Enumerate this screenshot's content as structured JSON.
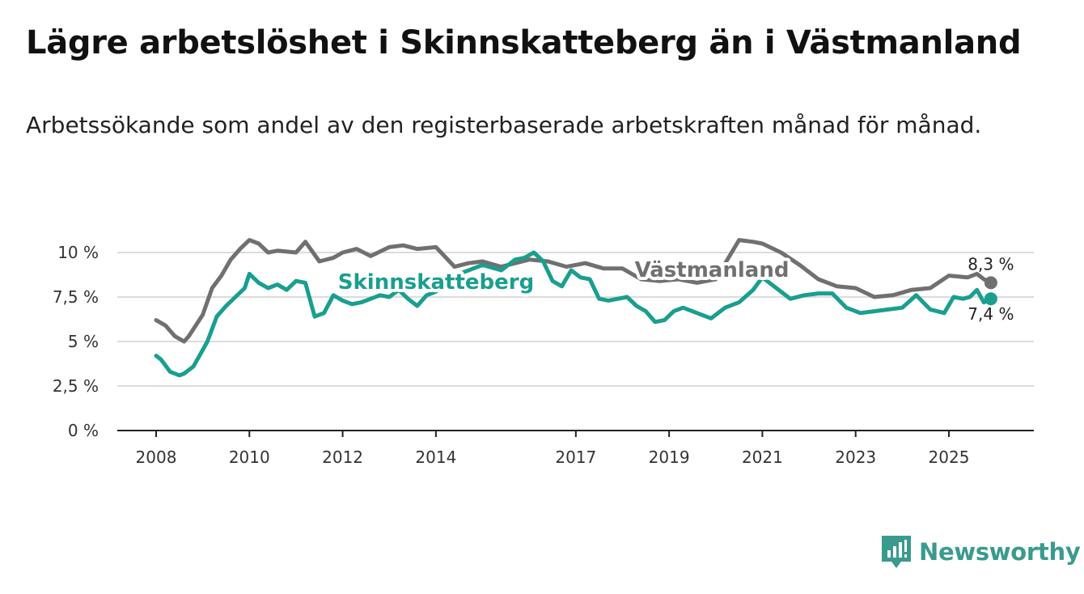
{
  "title": "Lägre arbetslöshet i Skinnskatteberg än i Västmanland",
  "subtitle": "Arbetssökande som andel av den registerbaserade arbetskraften månad för månad.",
  "brand": {
    "name": "Newsworthy",
    "color": "#3a9a8e"
  },
  "chart_data": {
    "type": "line",
    "x_range": [
      2007.5,
      2026.9
    ],
    "ylim": [
      0,
      10.5
    ],
    "y_ticks": [
      {
        "value": 0,
        "label": "0 %"
      },
      {
        "value": 2.5,
        "label": "2,5 %"
      },
      {
        "value": 5,
        "label": "5 %"
      },
      {
        "value": 7.5,
        "label": "7,5 %"
      },
      {
        "value": 10,
        "label": "10 %"
      }
    ],
    "x_ticks": [
      {
        "value": 2008,
        "label": "2008"
      },
      {
        "value": 2010,
        "label": "2010"
      },
      {
        "value": 2012,
        "label": "2012"
      },
      {
        "value": 2014,
        "label": "2014"
      },
      {
        "value": 2017,
        "label": "2017"
      },
      {
        "value": 2019,
        "label": "2019"
      },
      {
        "value": 2021,
        "label": "2021"
      },
      {
        "value": 2023,
        "label": "2023"
      },
      {
        "value": 2025,
        "label": "2025"
      }
    ],
    "grid": true,
    "series": [
      {
        "name": "Västmanland",
        "color": "#707070",
        "end_label": "8,3 %",
        "x": [
          2008.0,
          2008.2,
          2008.4,
          2008.6,
          2008.7,
          2009.0,
          2009.2,
          2009.4,
          2009.6,
          2009.8,
          2010.0,
          2010.2,
          2010.4,
          2010.6,
          2011.0,
          2011.2,
          2011.5,
          2011.8,
          2012.0,
          2012.3,
          2012.6,
          2013.0,
          2013.3,
          2013.6,
          2014.0,
          2014.4,
          2014.7,
          2015.0,
          2015.4,
          2015.7,
          2016.0,
          2016.4,
          2016.8,
          2017.2,
          2017.6,
          2018.0,
          2018.4,
          2018.8,
          2019.2,
          2019.6,
          2020.0,
          2020.5,
          2020.8,
          2021.0,
          2021.4,
          2021.8,
          2022.2,
          2022.6,
          2023.0,
          2023.4,
          2023.8,
          2024.2,
          2024.6,
          2025.0,
          2025.4,
          2025.6,
          2025.75,
          2025.9
        ],
        "values": [
          6.2,
          5.9,
          5.3,
          5.0,
          5.3,
          6.5,
          8.0,
          8.7,
          9.6,
          10.2,
          10.7,
          10.5,
          10.0,
          10.1,
          10.0,
          10.6,
          9.5,
          9.7,
          10.0,
          10.2,
          9.8,
          10.3,
          10.4,
          10.2,
          10.3,
          9.2,
          9.4,
          9.5,
          9.2,
          9.4,
          9.6,
          9.5,
          9.2,
          9.4,
          9.1,
          9.1,
          8.5,
          8.4,
          8.5,
          8.3,
          8.5,
          10.7,
          10.6,
          10.5,
          10.0,
          9.3,
          8.5,
          8.1,
          8.0,
          7.5,
          7.6,
          7.9,
          8.0,
          8.7,
          8.6,
          8.8,
          8.5,
          8.3
        ]
      },
      {
        "name": "Skinnskatteberg",
        "color": "#1a9e8f",
        "end_label": "7,4 %",
        "x": [
          2008.0,
          2008.1,
          2008.3,
          2008.5,
          2008.6,
          2008.8,
          2008.95,
          2009.1,
          2009.3,
          2009.5,
          2009.7,
          2009.9,
          2010.0,
          2010.2,
          2010.4,
          2010.6,
          2010.8,
          2011.0,
          2011.2,
          2011.4,
          2011.6,
          2011.8,
          2012.0,
          2012.2,
          2012.4,
          2012.6,
          2012.8,
          2013.0,
          2013.2,
          2013.4,
          2013.6,
          2013.8,
          2014.0,
          2014.3,
          2014.6,
          2014.8,
          2015.0,
          2015.4,
          2015.7,
          2015.9,
          2016.1,
          2016.3,
          2016.5,
          2016.7,
          2016.9,
          2017.1,
          2017.3,
          2017.5,
          2017.7,
          2017.9,
          2018.1,
          2018.3,
          2018.5,
          2018.7,
          2018.9,
          2019.1,
          2019.3,
          2019.6,
          2019.9,
          2020.2,
          2020.5,
          2020.8,
          2021.0,
          2021.3,
          2021.6,
          2021.9,
          2022.2,
          2022.5,
          2022.8,
          2023.1,
          2023.4,
          2023.7,
          2024.0,
          2024.3,
          2024.6,
          2024.9,
          2025.1,
          2025.3,
          2025.45,
          2025.6,
          2025.75,
          2025.9
        ],
        "values": [
          4.2,
          4.0,
          3.3,
          3.1,
          3.2,
          3.6,
          4.3,
          5.0,
          6.4,
          7.0,
          7.5,
          8.0,
          8.8,
          8.3,
          8.0,
          8.2,
          7.9,
          8.4,
          8.3,
          6.4,
          6.6,
          7.6,
          7.3,
          7.1,
          7.2,
          7.4,
          7.6,
          7.5,
          7.9,
          7.4,
          7.0,
          7.6,
          7.8,
          8.6,
          8.9,
          9.1,
          9.3,
          9.0,
          9.6,
          9.7,
          10.0,
          9.5,
          8.4,
          8.1,
          9.0,
          8.6,
          8.5,
          7.4,
          7.3,
          7.4,
          7.5,
          7.0,
          6.7,
          6.1,
          6.2,
          6.7,
          6.9,
          6.6,
          6.3,
          6.9,
          7.2,
          7.9,
          8.6,
          8.0,
          7.4,
          7.6,
          7.7,
          7.7,
          6.9,
          6.6,
          6.7,
          6.8,
          6.9,
          7.6,
          6.8,
          6.6,
          7.5,
          7.4,
          7.5,
          7.9,
          7.2,
          7.4
        ]
      }
    ]
  }
}
